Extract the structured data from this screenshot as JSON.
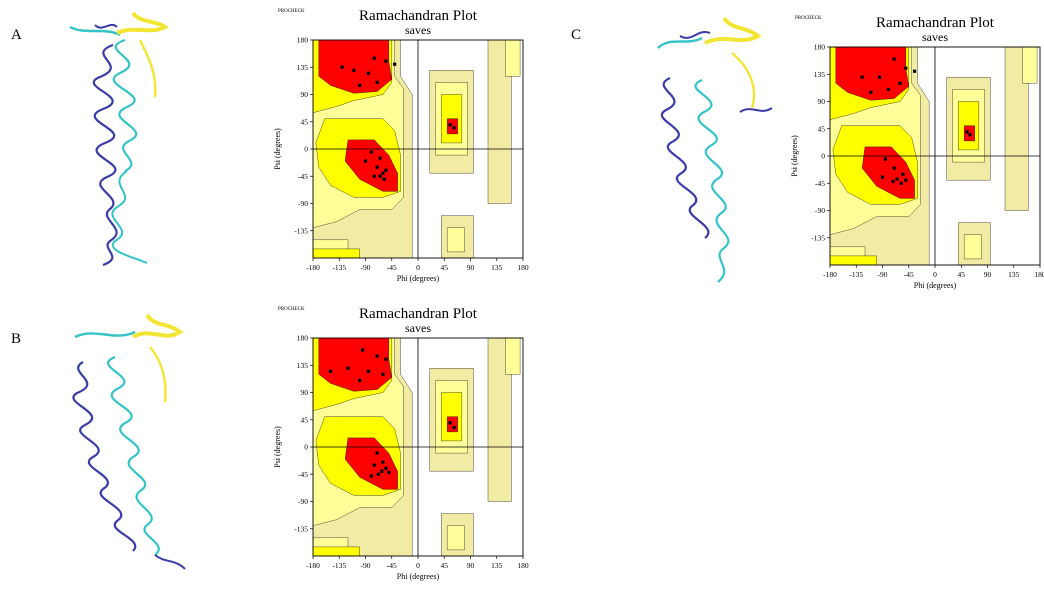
{
  "figure": {
    "panel_labels": [
      "A",
      "B",
      "C"
    ]
  },
  "plot_text": {
    "procheck": "PROCHECK",
    "title": "Ramachandran Plot",
    "subtitle": "saves",
    "xlabel": "Phi (degrees)",
    "ylabel": "Psi (degrees)",
    "x_ticks": [
      "-180",
      "-135",
      "-90",
      "-45",
      "0",
      "45",
      "90",
      "135",
      "180"
    ],
    "y_ticks": [
      "180",
      "135",
      "90",
      "45",
      "0",
      "-45",
      "-90",
      "-135"
    ]
  },
  "colors": {
    "core": "#ff0000",
    "allowed": "#ffff00",
    "generous": "#ffff99",
    "generous2": "#f2eba4",
    "helix_dark": "#3c3ca8",
    "helix_light": "#34c4c8",
    "strand": "#f2e633"
  },
  "chart_data": [
    {
      "type": "scatter",
      "panel": "A",
      "title": "Ramachandran Plot",
      "subtitle": "saves",
      "xlabel": "Phi (degrees)",
      "ylabel": "Psi (degrees)",
      "xlim": [
        -180,
        180
      ],
      "ylim": [
        -180,
        180
      ],
      "points": [
        {
          "x": -75,
          "y": 150
        },
        {
          "x": -55,
          "y": 145
        },
        {
          "x": -40,
          "y": 140
        },
        {
          "x": -85,
          "y": 125
        },
        {
          "x": -110,
          "y": 130
        },
        {
          "x": -130,
          "y": 135
        },
        {
          "x": -70,
          "y": 110
        },
        {
          "x": -100,
          "y": 105
        },
        {
          "x": -80,
          "y": -5
        },
        {
          "x": -65,
          "y": -15
        },
        {
          "x": -90,
          "y": -20
        },
        {
          "x": -70,
          "y": -30
        },
        {
          "x": -60,
          "y": -40
        },
        {
          "x": -55,
          "y": -35
        },
        {
          "x": -65,
          "y": -45
        },
        {
          "x": -75,
          "y": -45
        },
        {
          "x": -58,
          "y": -50
        },
        {
          "x": 55,
          "y": 40
        },
        {
          "x": 62,
          "y": 35
        }
      ]
    },
    {
      "type": "scatter",
      "panel": "B",
      "title": "Ramachandran Plot",
      "subtitle": "saves",
      "xlabel": "Phi (degrees)",
      "ylabel": "Psi (degrees)",
      "xlim": [
        -180,
        180
      ],
      "ylim": [
        -180,
        180
      ],
      "points": [
        {
          "x": -95,
          "y": 160
        },
        {
          "x": -70,
          "y": 150
        },
        {
          "x": -55,
          "y": 145
        },
        {
          "x": -120,
          "y": 130
        },
        {
          "x": -150,
          "y": 125
        },
        {
          "x": -85,
          "y": 125
        },
        {
          "x": -60,
          "y": 120
        },
        {
          "x": -100,
          "y": 110
        },
        {
          "x": -70,
          "y": -10
        },
        {
          "x": -60,
          "y": -25
        },
        {
          "x": -75,
          "y": -30
        },
        {
          "x": -55,
          "y": -35
        },
        {
          "x": -62,
          "y": -40
        },
        {
          "x": -68,
          "y": -45
        },
        {
          "x": -50,
          "y": -42
        },
        {
          "x": -80,
          "y": -48
        },
        {
          "x": 55,
          "y": 40
        },
        {
          "x": 62,
          "y": 32
        }
      ]
    },
    {
      "type": "scatter",
      "panel": "C",
      "title": "Ramachandran Plot",
      "subtitle": "saves",
      "xlabel": "Phi (degrees)",
      "ylabel": "Psi (degrees)",
      "xlim": [
        -180,
        180
      ],
      "ylim": [
        -180,
        180
      ],
      "points": [
        {
          "x": -70,
          "y": 160
        },
        {
          "x": -50,
          "y": 145
        },
        {
          "x": -35,
          "y": 140
        },
        {
          "x": -95,
          "y": 130
        },
        {
          "x": -125,
          "y": 130
        },
        {
          "x": -80,
          "y": 110
        },
        {
          "x": -110,
          "y": 105
        },
        {
          "x": -60,
          "y": 120
        },
        {
          "x": -85,
          "y": -5
        },
        {
          "x": -70,
          "y": -20
        },
        {
          "x": -55,
          "y": -30
        },
        {
          "x": -65,
          "y": -38
        },
        {
          "x": -50,
          "y": -40
        },
        {
          "x": -58,
          "y": -45
        },
        {
          "x": -72,
          "y": -42
        },
        {
          "x": -90,
          "y": -35
        },
        {
          "x": 55,
          "y": 40
        },
        {
          "x": 60,
          "y": 35
        }
      ]
    }
  ]
}
